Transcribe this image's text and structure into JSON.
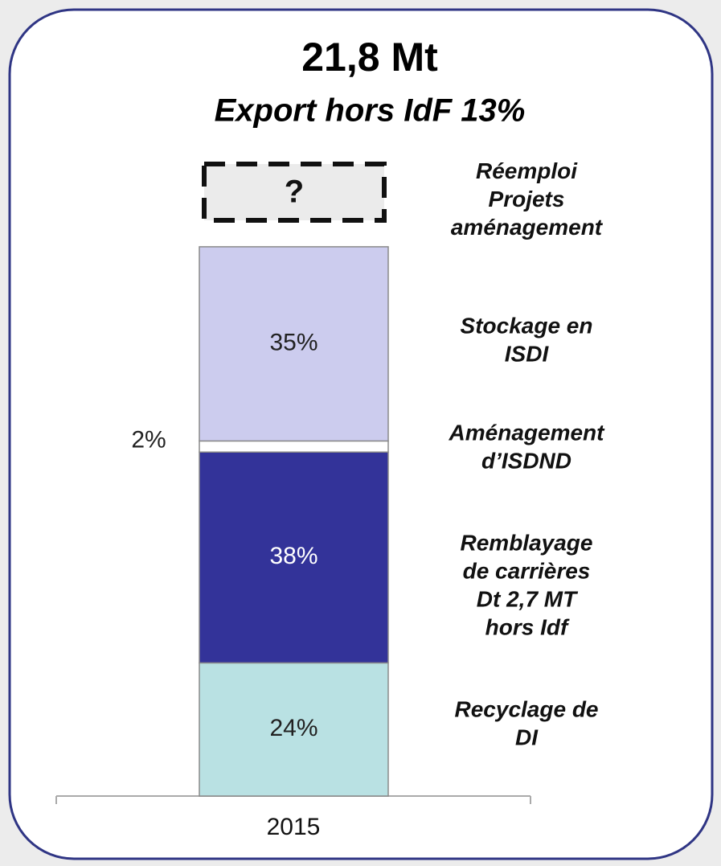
{
  "chart_data": {
    "type": "stacked_bar",
    "title": "21,8 Mt",
    "subtitle": "Export hors IdF 13%",
    "categories": [
      "2015"
    ],
    "series": [
      {
        "name": "Recyclage de\nDI",
        "color": "#b9e1e3",
        "values": [
          24
        ],
        "value_labels": [
          "24%"
        ]
      },
      {
        "name": "Remblayage\nde carrières\nDt 2,7 MT\nhors Idf",
        "color": "#333399",
        "values": [
          38
        ],
        "value_labels": [
          "38%"
        ]
      },
      {
        "name": "Aménagement\nd’ISDND",
        "color": "#ffffff",
        "values": [
          2
        ],
        "value_labels": [
          "2%"
        ]
      },
      {
        "name": "Stockage en\nISDI",
        "color": "#ccccee",
        "values": [
          35
        ],
        "value_labels": [
          "35%"
        ]
      }
    ],
    "annotation": {
      "text": "?",
      "label": "Réemploi\nProjets\naménagement"
    }
  }
}
